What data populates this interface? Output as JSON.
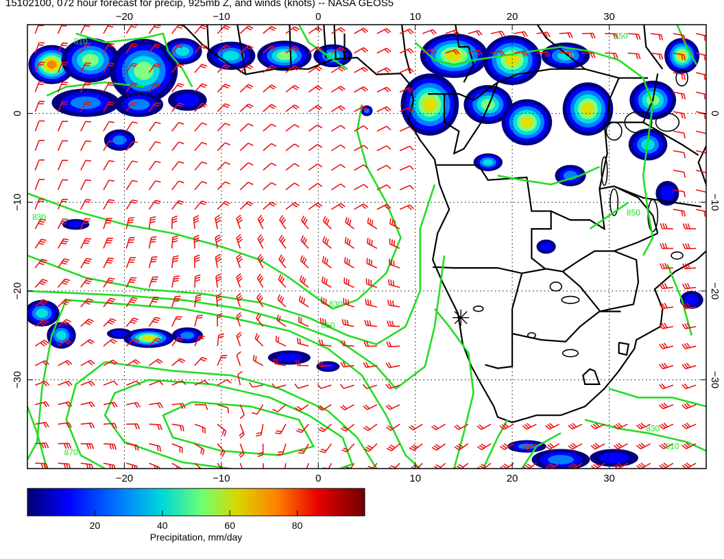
{
  "title": "15102100, 072 hour forecast for precip, 925mb Z, and winds (knots) -- NASA GEOS5",
  "map": {
    "lon_range": [
      -30,
      40
    ],
    "lat_range": [
      -40,
      10
    ],
    "lon_ticks": [
      {
        "value": -20,
        "label": "−20"
      },
      {
        "value": -10,
        "label": "−10"
      },
      {
        "value": 0,
        "label": "0"
      },
      {
        "value": 10,
        "label": "10"
      },
      {
        "value": 20,
        "label": "20"
      },
      {
        "value": 30,
        "label": "30"
      }
    ],
    "lat_ticks": [
      {
        "value": 0,
        "label": "0"
      },
      {
        "value": -10,
        "label": "−10"
      },
      {
        "value": -20,
        "label": "−20"
      },
      {
        "value": -30,
        "label": "−30"
      }
    ],
    "contour_color": "#22dd22",
    "barb_color": "#ee1111",
    "precip_colors": [
      "#000080",
      "#0000ff",
      "#0080ff",
      "#00e0e0",
      "#80ff80",
      "#e0e000",
      "#ff8000",
      "#ff0000",
      "#800000"
    ],
    "contour_labels": [
      {
        "text": "810",
        "lon": -24.5,
        "lat": 7.8
      },
      {
        "text": "850",
        "lon": 31.2,
        "lat": 8.4
      },
      {
        "text": "830",
        "lon": -28.8,
        "lat": -12.0
      },
      {
        "text": "830",
        "lon": 1.8,
        "lat": -21.8
      },
      {
        "text": "850",
        "lon": 1.0,
        "lat": -24.2
      },
      {
        "text": "870",
        "lon": -25.5,
        "lat": -38.5
      },
      {
        "text": "830",
        "lon": 34.5,
        "lat": -35.8
      },
      {
        "text": "810",
        "lon": 36.5,
        "lat": -37.8
      },
      {
        "text": "850",
        "lon": 32.5,
        "lat": -11.5
      }
    ]
  },
  "colorbar": {
    "tick_labels": [
      "20",
      "40",
      "60",
      "80"
    ],
    "tick_values": [
      20,
      40,
      60,
      80
    ],
    "range": [
      0,
      100
    ],
    "label": "Precipitation, mm/day"
  }
}
